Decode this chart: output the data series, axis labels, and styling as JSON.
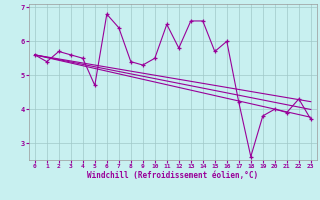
{
  "xlabel": "Windchill (Refroidissement éolien,°C)",
  "background_color": "#c8f0f0",
  "line_color": "#990099",
  "grid_color": "#a0c8c8",
  "xlim": [
    -0.5,
    23.5
  ],
  "ylim": [
    2.5,
    7.1
  ],
  "xticks": [
    0,
    1,
    2,
    3,
    4,
    5,
    6,
    7,
    8,
    9,
    10,
    11,
    12,
    13,
    14,
    15,
    16,
    17,
    18,
    19,
    20,
    21,
    22,
    23
  ],
  "yticks": [
    3,
    4,
    5,
    6,
    7
  ],
  "series": {
    "main": [
      5.6,
      5.4,
      5.7,
      5.6,
      5.5,
      4.7,
      6.8,
      6.4,
      5.4,
      5.3,
      5.5,
      6.5,
      5.8,
      6.6,
      6.6,
      5.7,
      6.0,
      4.2,
      2.6,
      3.8,
      4.0,
      3.9,
      4.3,
      3.7
    ],
    "reg1": [
      5.6,
      5.53,
      5.46,
      5.39,
      5.32,
      5.25,
      5.18,
      5.11,
      5.04,
      4.97,
      4.9,
      4.83,
      4.76,
      4.69,
      4.62,
      4.55,
      4.48,
      4.41,
      4.34,
      4.27,
      4.2,
      4.13,
      4.06,
      3.99
    ],
    "reg2": [
      5.6,
      5.54,
      5.48,
      5.42,
      5.36,
      5.3,
      5.24,
      5.18,
      5.12,
      5.06,
      5.0,
      4.94,
      4.88,
      4.82,
      4.76,
      4.7,
      4.64,
      4.58,
      4.52,
      4.46,
      4.4,
      4.34,
      4.28,
      4.22
    ],
    "reg3": [
      5.6,
      5.52,
      5.44,
      5.36,
      5.28,
      5.2,
      5.12,
      5.04,
      4.96,
      4.88,
      4.8,
      4.72,
      4.64,
      4.56,
      4.48,
      4.4,
      4.32,
      4.24,
      4.16,
      4.08,
      4.0,
      3.92,
      3.84,
      3.76
    ]
  }
}
